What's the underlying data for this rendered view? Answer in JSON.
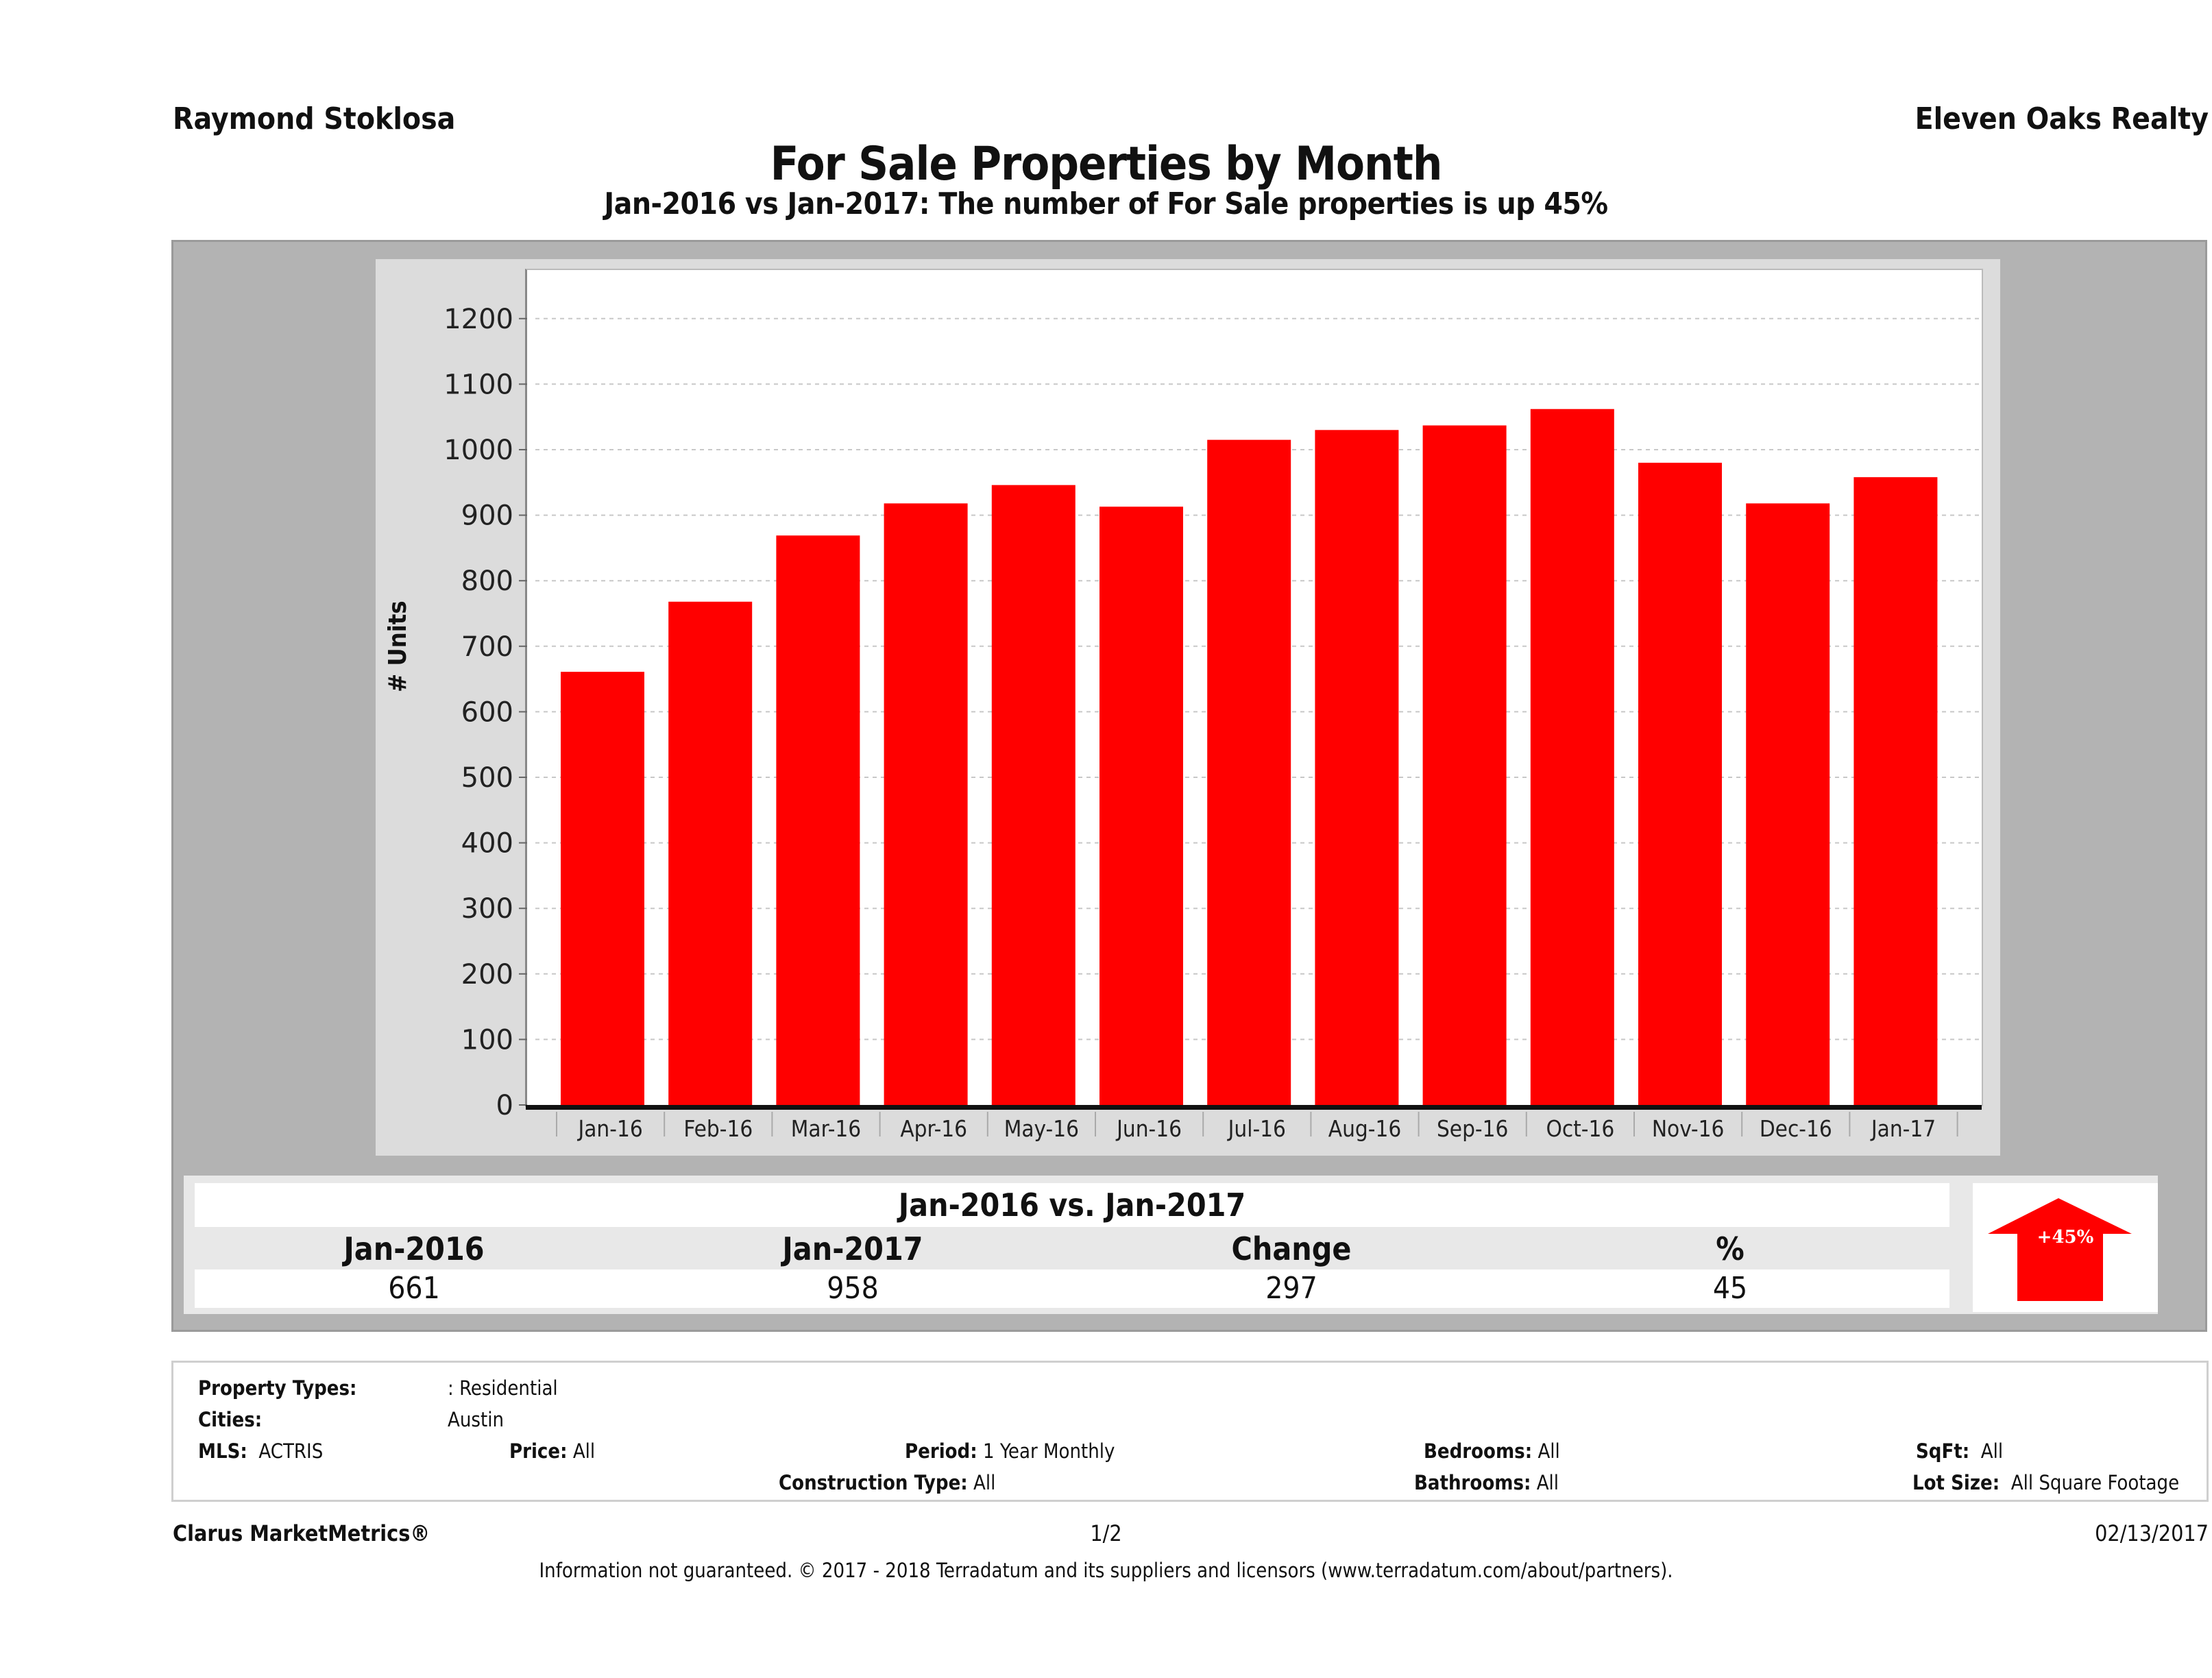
{
  "header": {
    "agent_name": "Raymond Stoklosa",
    "office_name": "Eleven Oaks Realty",
    "title": "For Sale Properties by Month",
    "subtitle": "Jan-2016 vs Jan-2017: The number of For Sale  properties is up 45%"
  },
  "chart_data": {
    "type": "bar",
    "title": "For Sale Properties by Month",
    "xlabel": "",
    "ylabel": "# Units",
    "categories": [
      "Jan-16",
      "Feb-16",
      "Mar-16",
      "Apr-16",
      "May-16",
      "Jun-16",
      "Jul-16",
      "Aug-16",
      "Sep-16",
      "Oct-16",
      "Nov-16",
      "Dec-16",
      "Jan-17"
    ],
    "values": [
      661,
      768,
      869,
      918,
      946,
      913,
      1015,
      1030,
      1037,
      1062,
      980,
      918,
      958
    ],
    "ylim": [
      0,
      1250
    ],
    "yticks": [
      0,
      100,
      200,
      300,
      400,
      500,
      600,
      700,
      800,
      900,
      1000,
      1100,
      1200
    ],
    "grid": true,
    "bar_color": "#ff0000",
    "legend": "none"
  },
  "comparison": {
    "title": "Jan-2016 vs. Jan-2017",
    "headers": [
      "Jan-2016",
      "Jan-2017",
      "Change",
      "%"
    ],
    "values": [
      "661",
      "958",
      "297",
      "45"
    ],
    "badge": {
      "label": "+45%",
      "icon": "up-arrow-icon",
      "color": "#ff0000"
    }
  },
  "filters": {
    "property_types": {
      "label": "Property Types:",
      "value": ": Residential"
    },
    "cities": {
      "label": "Cities:",
      "value": "Austin"
    },
    "mls": {
      "label": "MLS:",
      "value": "ACTRIS"
    },
    "price": {
      "label": "Price:",
      "value": "All"
    },
    "period": {
      "label": "Period:",
      "value": "1 Year Monthly"
    },
    "construction_type": {
      "label": "Construction Type:",
      "value": "All"
    },
    "bedrooms": {
      "label": "Bedrooms:",
      "value": "All"
    },
    "bathrooms": {
      "label": "Bathrooms:",
      "value": "All"
    },
    "sqft": {
      "label": "SqFt:",
      "value": "All"
    },
    "lot_size": {
      "label": "Lot Size:",
      "value": "All Square Footage"
    }
  },
  "footer": {
    "brand": "Clarus MarketMetrics®",
    "page": "1/2",
    "date": "02/13/2017",
    "disclaimer": "Information not guaranteed. © 2017 - 2018 Terradatum and its suppliers and licensors (www.terradatum.com/about/partners)."
  }
}
